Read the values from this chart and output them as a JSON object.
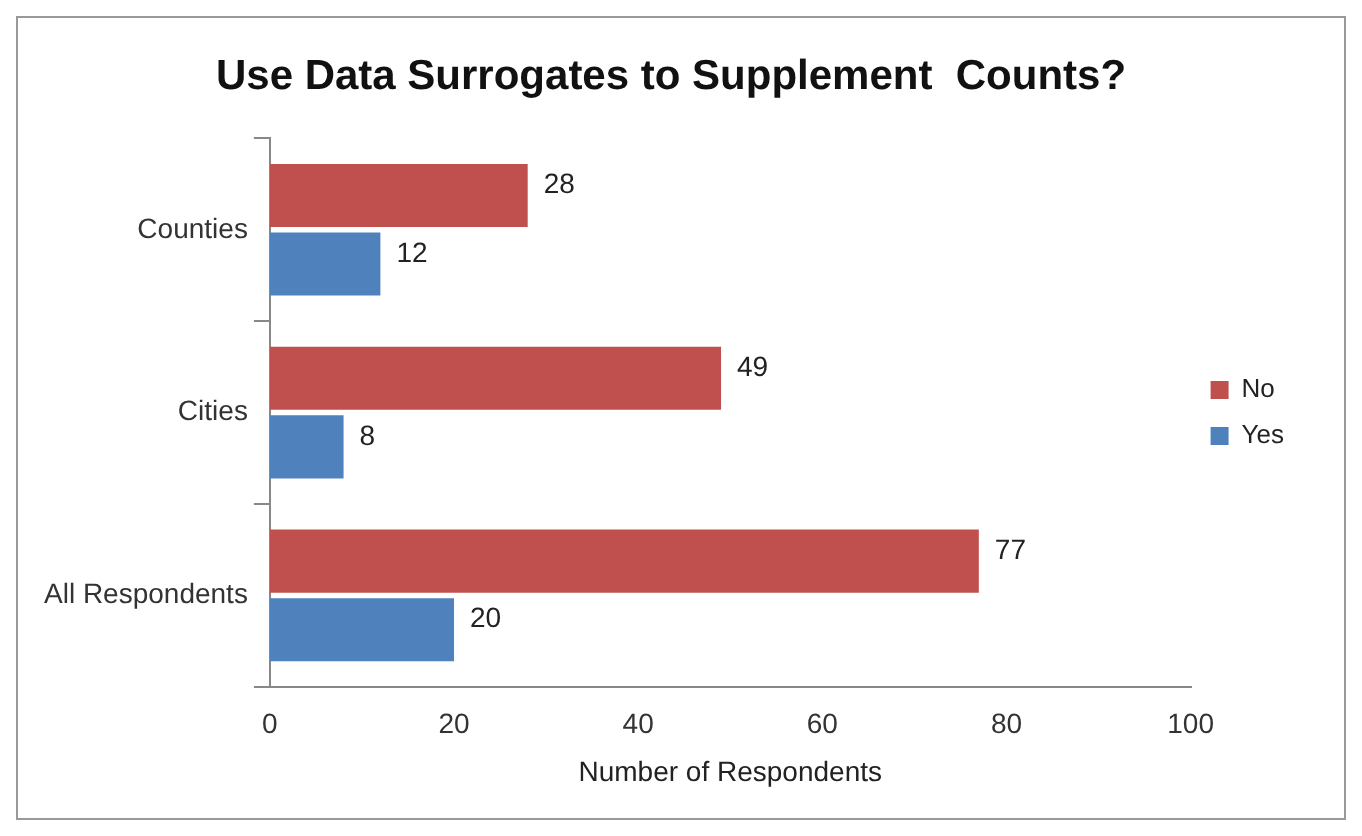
{
  "chart_data": {
    "type": "bar",
    "orientation": "horizontal",
    "title": "Use Data Surrogates to Supplement  Counts?",
    "xlabel": "Number of Respondents",
    "categories": [
      "Counties",
      "Cities",
      "All Respondents"
    ],
    "series": [
      {
        "name": "No",
        "color": "#c0504d",
        "values": [
          28,
          49,
          77
        ]
      },
      {
        "name": "Yes",
        "color": "#4f81bd",
        "values": [
          12,
          8,
          20
        ]
      }
    ],
    "xlim": [
      0,
      100
    ],
    "xticks": [
      0,
      20,
      40,
      60,
      80,
      100
    ],
    "grid": false,
    "legend": "right",
    "data_labels": true
  }
}
